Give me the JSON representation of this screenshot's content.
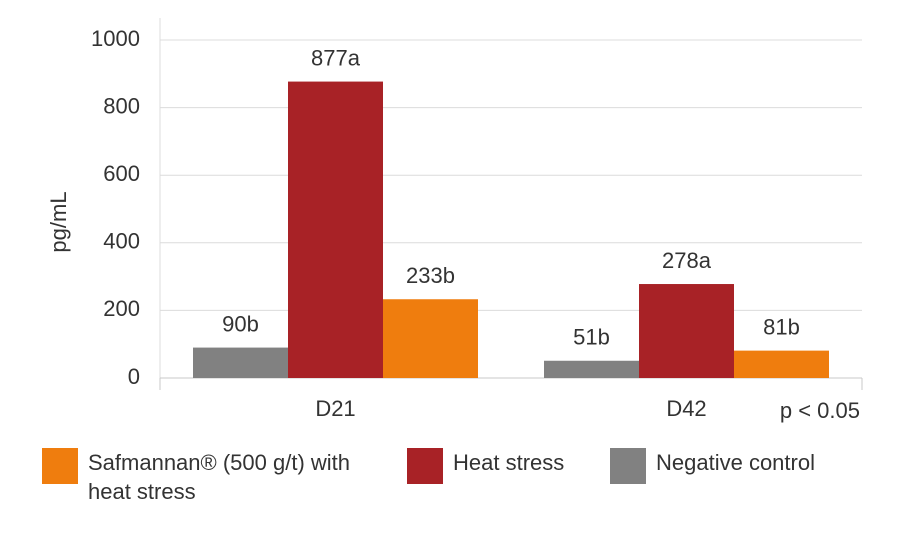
{
  "chart_data": {
    "type": "bar",
    "categories": [
      "D21",
      "D42"
    ],
    "series": [
      {
        "name": "Negative control",
        "color": "#818181",
        "values": [
          90,
          51
        ],
        "value_labels": [
          "90b",
          "51b"
        ]
      },
      {
        "name": "Heat stress",
        "color": "#a82226",
        "values": [
          877,
          278
        ],
        "value_labels": [
          "877a",
          "278a"
        ]
      },
      {
        "name": "Safmannan® (500 g/t) with heat stress",
        "color": "#ef7d0e",
        "values": [
          233,
          81
        ],
        "value_labels": [
          "233b",
          "81b"
        ]
      }
    ],
    "y_label": "pg/mL",
    "annotation": "p < 0.05",
    "ylim": [
      0,
      1000
    ],
    "yticks": [
      0,
      200,
      400,
      600,
      800,
      1000
    ],
    "grid": true
  }
}
